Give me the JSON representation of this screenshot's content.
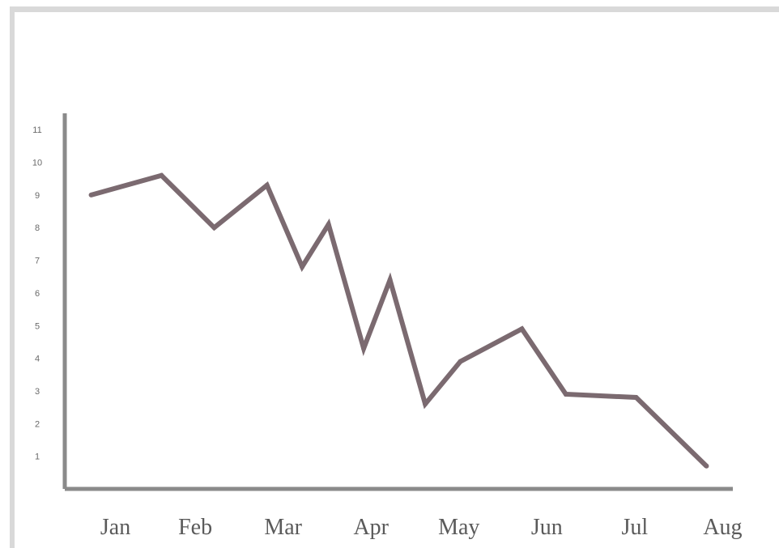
{
  "chart_data": {
    "type": "line",
    "title": "",
    "xlabel": "",
    "ylabel": "",
    "categories": [
      "Jan",
      "Feb",
      "Mar",
      "Apr",
      "May",
      "Jun",
      "Jul",
      "Aug"
    ],
    "x": [
      1.0,
      1.8,
      2.4,
      3.0,
      3.4,
      3.7,
      4.1,
      4.4,
      4.8,
      5.2,
      5.9,
      6.4,
      7.2,
      8.0
    ],
    "values": [
      9.0,
      9.6,
      8.0,
      9.3,
      6.8,
      8.1,
      4.3,
      6.4,
      2.6,
      3.9,
      4.9,
      2.9,
      2.8,
      0.7
    ],
    "yticks": [
      "1",
      "2",
      "3",
      "4",
      "5",
      "6",
      "7",
      "8",
      "9",
      "10",
      "11"
    ],
    "xlim": [
      0.7,
      8.3
    ],
    "ylim": [
      0,
      11.5
    ],
    "grid": false,
    "legend": "none",
    "colors": {
      "line": "#7b6a70",
      "axis": "#8a8a8a",
      "tick_text": "#5a5a5a"
    }
  }
}
